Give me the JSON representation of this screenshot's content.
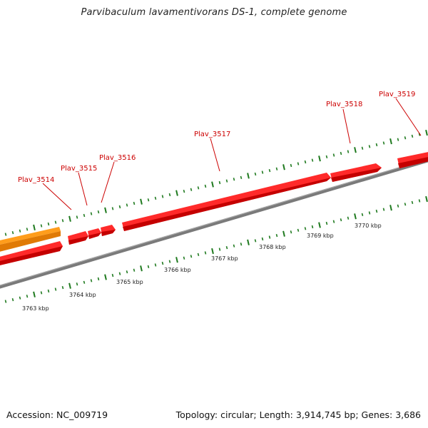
{
  "title": "Parvibaculum lavamentivorans DS-1, complete genome",
  "footer": {
    "accession": "Accession: NC_009719",
    "summary": "Topology: circular; Length: 3,914,745 bp; Genes: 3,686"
  },
  "colors": {
    "backbone": "#7a7a7a",
    "gene_forward": "#ee1111",
    "gene_other": "#f5930f",
    "ticks": "#1f7a1f",
    "gene_label": "#cc0000"
  },
  "axis": {
    "unit": "kbp",
    "labels": [
      "3763 kbp",
      "3764 kbp",
      "3765 kbp",
      "3766 kbp",
      "3767 kbp",
      "3768 kbp",
      "3769 kbp",
      "3770 kbp"
    ]
  },
  "genes": [
    {
      "name": "Plav_3514",
      "color": "gene_forward"
    },
    {
      "name": "Plav_3515",
      "color": "gene_forward"
    },
    {
      "name": "Plav_3516",
      "color": "gene_forward"
    },
    {
      "name": "Plav_3517",
      "color": "gene_forward"
    },
    {
      "name": "Plav_3518",
      "color": "gene_forward"
    },
    {
      "name": "Plav_3519",
      "color": "gene_forward"
    }
  ]
}
